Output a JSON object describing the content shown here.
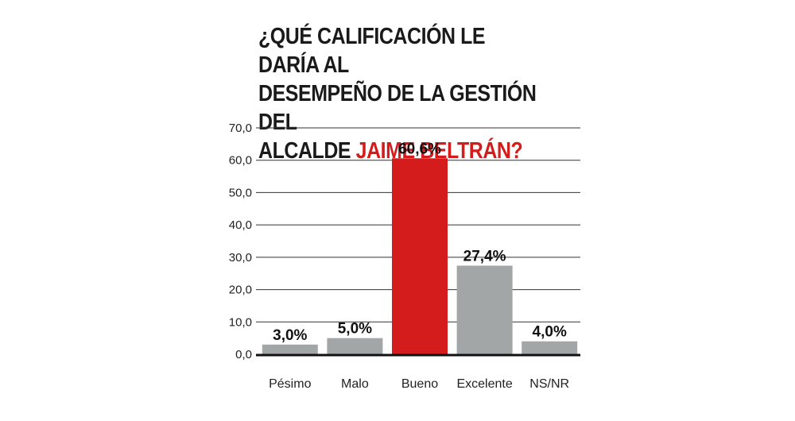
{
  "title": {
    "line1": "¿QUÉ CALIFICACIÓN LE DARÍA AL",
    "line2": "DESEMPEÑO DE LA GESTIÓN DEL",
    "line3_prefix": "ALCALDE ",
    "line3_highlight": "JAIME BELTRÁN?"
  },
  "colors": {
    "highlight": "#d41c1c",
    "bar_default": "#a3a6a7",
    "bar_highlight": "#d41c1c"
  },
  "chart_data": {
    "type": "bar",
    "categories": [
      "Pésimo",
      "Malo",
      "Bueno",
      "Excelente",
      "NS/NR"
    ],
    "values": [
      3.0,
      5.0,
      60.6,
      27.4,
      4.0
    ],
    "data_labels": [
      "3,0%",
      "5,0%",
      "60,6%",
      "27,4%",
      "4,0%"
    ],
    "highlight_index": 2,
    "ylim": [
      0,
      70
    ],
    "yticks": [
      0,
      10,
      20,
      30,
      40,
      50,
      60,
      70
    ],
    "ytick_labels": [
      "0,0",
      "10,0",
      "20,0",
      "30,0",
      "40,0",
      "50,0",
      "60,0",
      "70,0"
    ],
    "grid": true,
    "legend": "none"
  }
}
